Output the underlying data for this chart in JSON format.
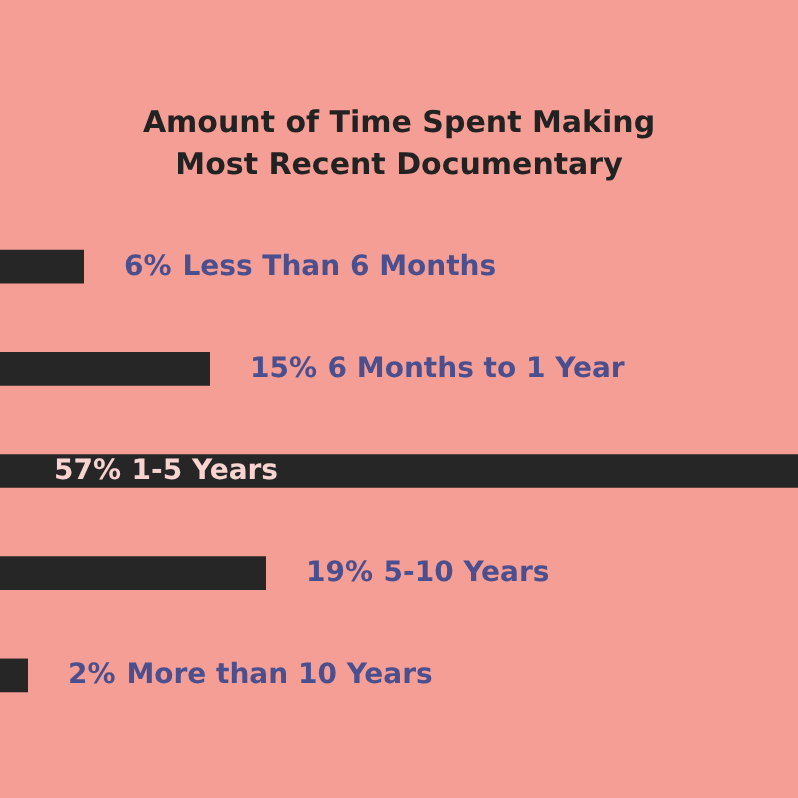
{
  "chart_data": {
    "type": "bar",
    "orientation": "horizontal",
    "title": "Amount of Time Spent Making\nMost Recent Documentary",
    "categories": [
      "Less Than 6 Months",
      "6 Months to 1 Year",
      "1-5 Years",
      "5-10 Years",
      "More than 10 Years"
    ],
    "values": [
      6,
      15,
      57,
      19,
      2
    ],
    "value_labels": [
      "6%",
      "15%",
      "57%",
      "19%",
      "2%"
    ],
    "color": "#262626",
    "tick_labels": false
  }
}
